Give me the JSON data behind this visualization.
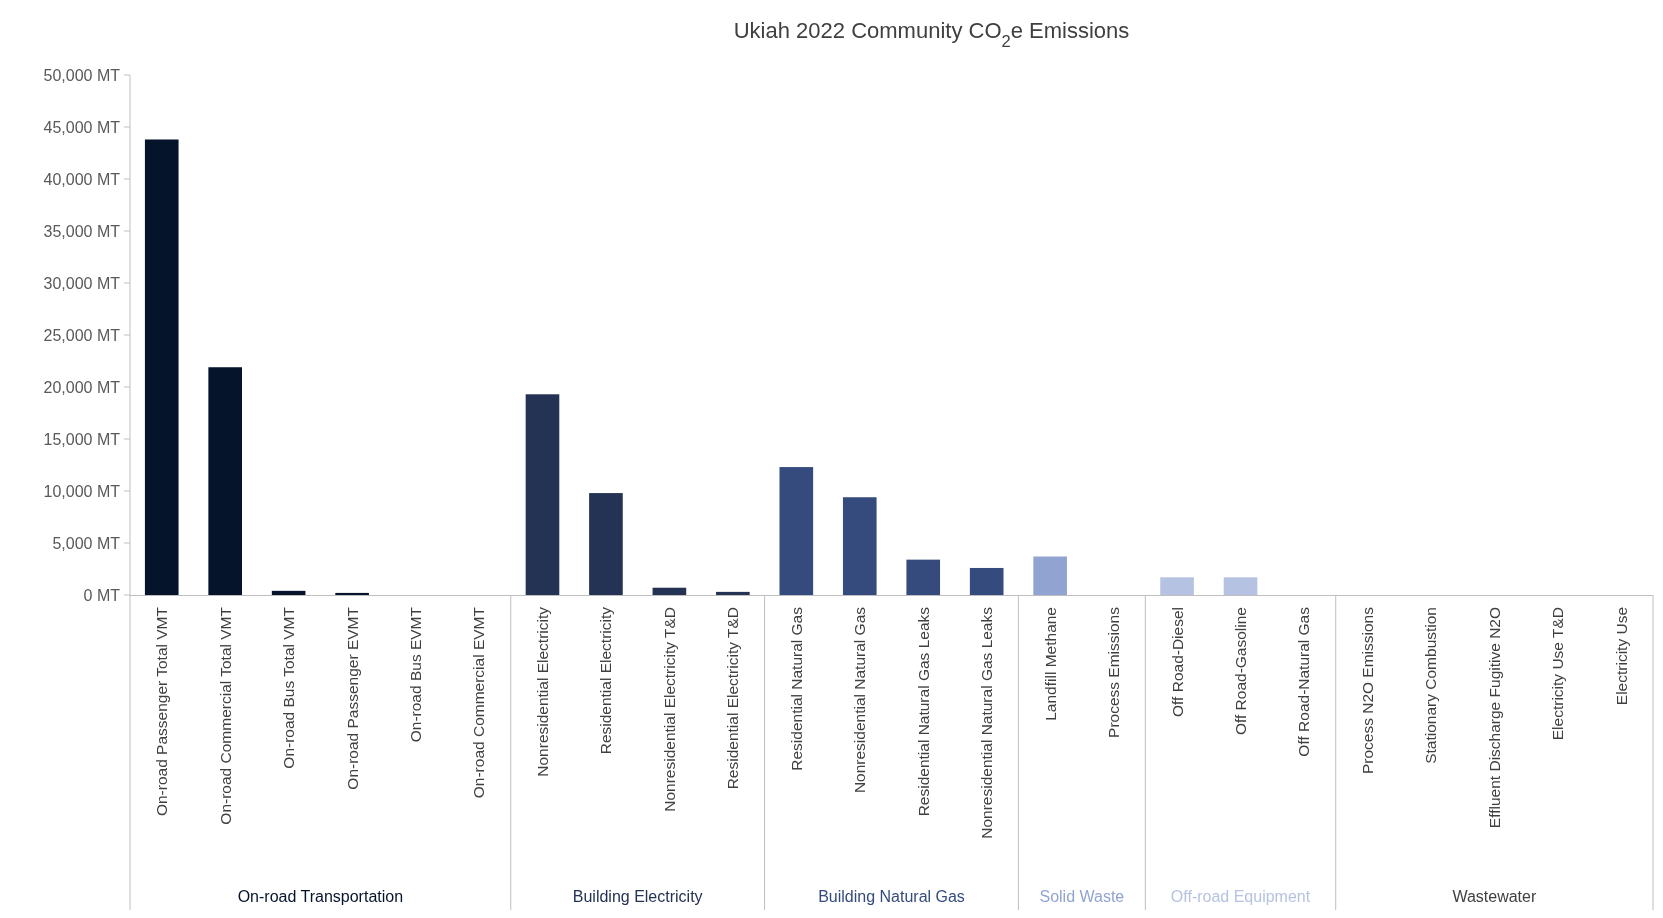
{
  "chart_data": {
    "type": "bar",
    "title": "Ukiah 2022 Community CO$_{2}$e Emissions",
    "categories": [
      "On-road Passenger Total VMT",
      "On-road Commercial Total VMT",
      "On-road Bus Total VMT",
      "On-road Passenger EVMT",
      "On-road Bus EVMT",
      "On-road Commercial EVMT",
      "Nonresidential Electricity",
      "Residential Electricity",
      "Nonresidential Electricity T&D",
      "Residential Electricity T&D",
      "Residential Natural Gas",
      "Nonresidential Natural Gas",
      "Residential Natural Gas Leaks",
      "Nonresidential Natural Gas Leaks",
      "Landfill Methane",
      "Process Emissions",
      "Off Road-Diesel",
      "Off Road-Gasoline",
      "Off Road-Natural Gas",
      "Process N2O Emissions",
      "Stationary Combustion",
      "Effluent Discharge Fugitive N2O",
      "Electricity Use T&D",
      "Electricity Use"
    ],
    "series": [
      {
        "name": "On-road Transportation",
        "color": "#06142b",
        "values": [
          43800,
          21900,
          400,
          200,
          0,
          0,
          null,
          null,
          null,
          null,
          null,
          null,
          null,
          null,
          null,
          null,
          null,
          null,
          null,
          null,
          null,
          null,
          null,
          null
        ]
      },
      {
        "name": "Building Electricity",
        "color": "#243253",
        "values": [
          null,
          null,
          null,
          null,
          null,
          null,
          19300,
          9800,
          700,
          300,
          null,
          null,
          null,
          null,
          null,
          null,
          null,
          null,
          null,
          null,
          null,
          null,
          null,
          null
        ]
      },
      {
        "name": "Building Natural Gas",
        "color": "#354b7e",
        "values": [
          null,
          null,
          null,
          null,
          null,
          null,
          null,
          null,
          null,
          null,
          12300,
          9400,
          3400,
          2600,
          null,
          null,
          null,
          null,
          null,
          null,
          null,
          null,
          null,
          null
        ]
      },
      {
        "name": "Solid Waste",
        "color": "#91a4d1",
        "values": [
          null,
          null,
          null,
          null,
          null,
          null,
          null,
          null,
          null,
          null,
          null,
          null,
          null,
          null,
          3700,
          0,
          null,
          null,
          null,
          null,
          null,
          null,
          null,
          null
        ]
      },
      {
        "name": "Off-road Equipment",
        "color": "#b6c2e1",
        "values": [
          null,
          null,
          null,
          null,
          null,
          null,
          null,
          null,
          null,
          null,
          null,
          null,
          null,
          null,
          null,
          null,
          1700,
          1700,
          0,
          null,
          null,
          null,
          null,
          null
        ]
      },
      {
        "name": "Wastewater",
        "values": [
          null,
          null,
          null,
          null,
          null,
          null,
          null,
          null,
          null,
          null,
          null,
          null,
          null,
          null,
          null,
          null,
          null,
          null,
          null,
          0,
          0,
          0,
          0,
          0
        ]
      }
    ],
    "ylim": [
      0,
      50000
    ],
    "yticks": [
      {
        "value": 0,
        "label": "0 MT"
      },
      {
        "value": 5000,
        "label": "5,000 MT"
      },
      {
        "value": 10000,
        "label": "10,000 MT"
      },
      {
        "value": 15000,
        "label": "15,000 MT"
      },
      {
        "value": 20000,
        "label": "20,000 MT"
      },
      {
        "value": 25000,
        "label": "25,000 MT"
      },
      {
        "value": 30000,
        "label": "30,000 MT"
      },
      {
        "value": 35000,
        "label": "35,000 MT"
      },
      {
        "value": 40000,
        "label": "40,000 MT"
      },
      {
        "value": 45000,
        "label": "45,000 MT"
      },
      {
        "value": 50000,
        "label": "50,000 MT"
      }
    ]
  }
}
